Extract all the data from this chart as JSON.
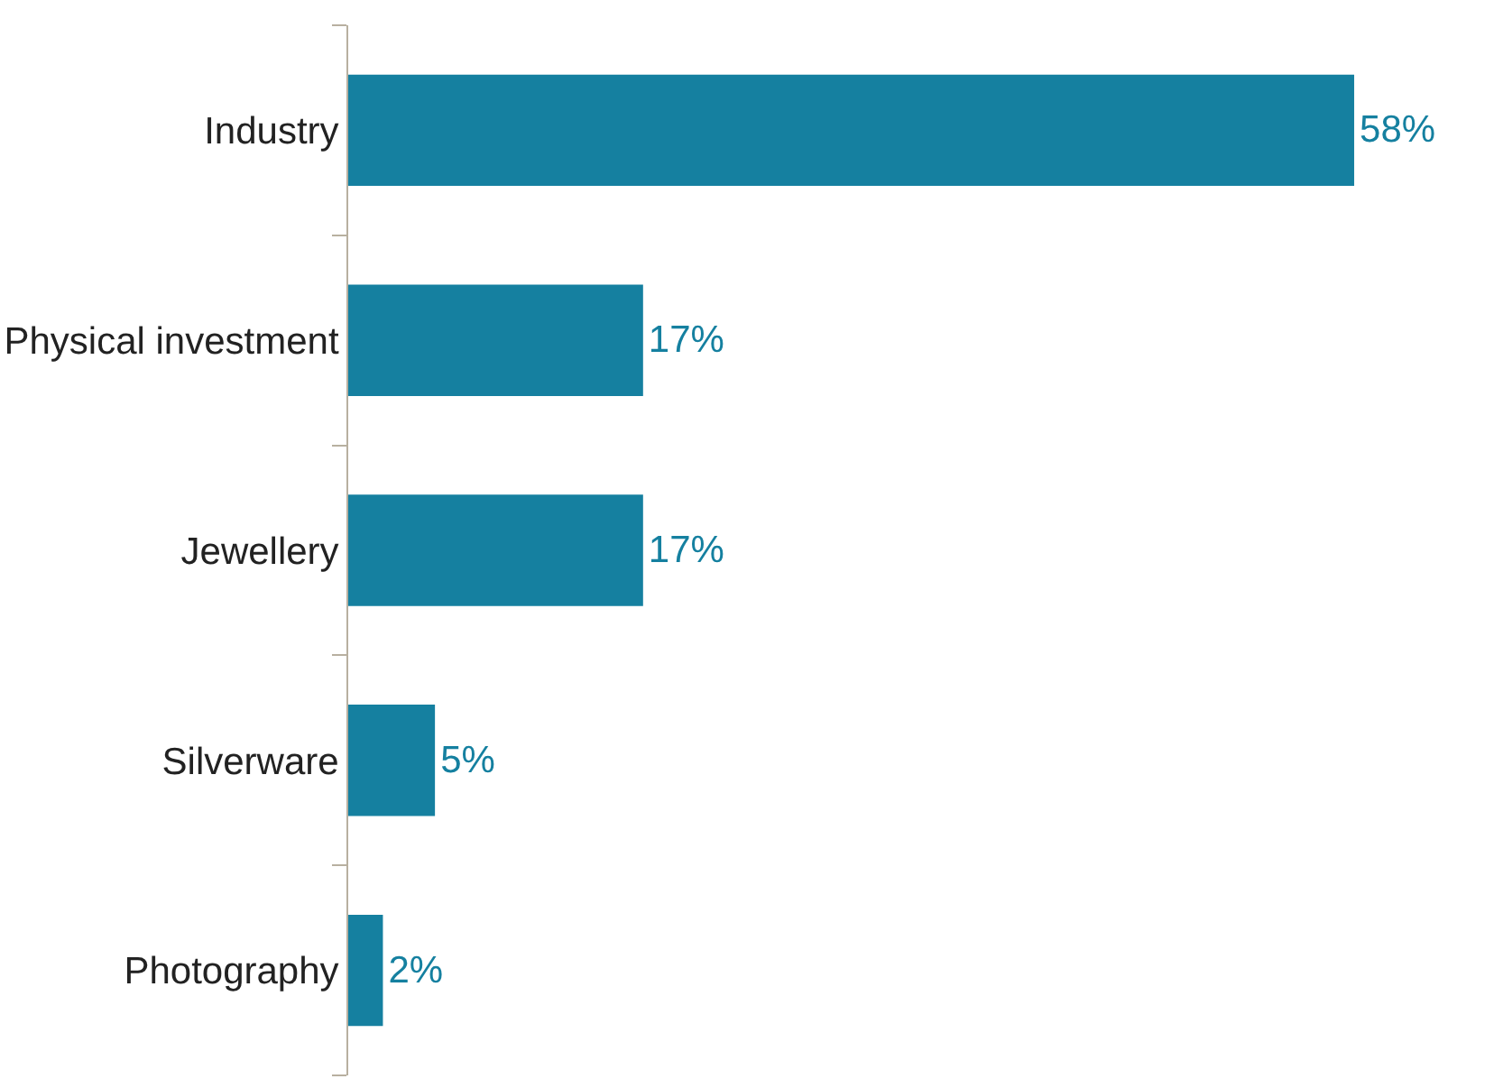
{
  "chart_data": {
    "type": "bar",
    "orientation": "horizontal",
    "categories": [
      "Industry",
      "Physical investment",
      "Jewellery",
      "Silverware",
      "Photography"
    ],
    "values": [
      58,
      17,
      17,
      5,
      2
    ],
    "value_labels": [
      "58%",
      "17%",
      "17%",
      "5%",
      "2%"
    ],
    "color": "#1580a0"
  }
}
